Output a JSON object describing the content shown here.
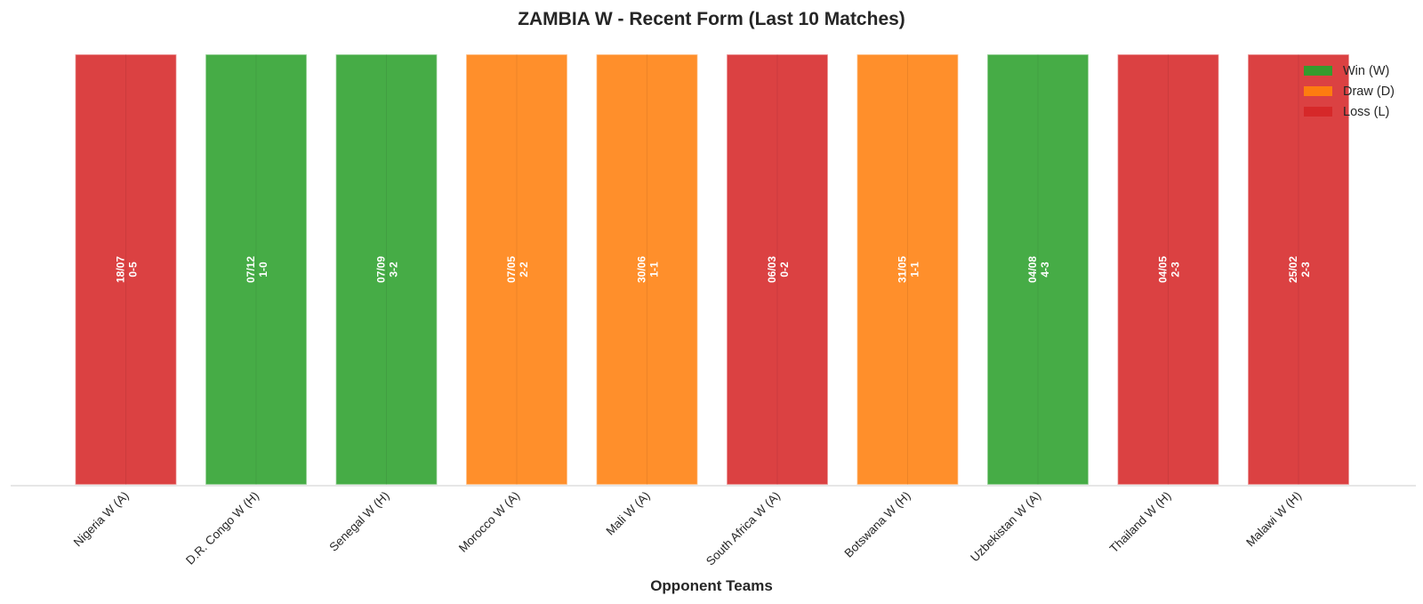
{
  "chart_data": {
    "type": "bar",
    "title": "ZAMBIA W - Recent Form (Last 10 Matches)",
    "xlabel": "Opponent Teams",
    "ylabel": "",
    "ylim": [
      0,
      1
    ],
    "grid": false,
    "legend_position": "top-right",
    "categories": [
      "Nigeria W (A)",
      "D.R. Congo W (H)",
      "Senegal W (H)",
      "Morocco W (A)",
      "Mali W (A)",
      "South Africa W (A)",
      "Botswana W (H)",
      "Uzbekistan W (A)",
      "Thailand W (H)",
      "Malawi W (H)"
    ],
    "values": [
      1,
      1,
      1,
      1,
      1,
      1,
      1,
      1,
      1,
      1
    ],
    "results": [
      "L",
      "W",
      "W",
      "D",
      "D",
      "L",
      "D",
      "W",
      "L",
      "L"
    ],
    "dates": [
      "18/07",
      "07/12",
      "07/09",
      "07/05",
      "30/06",
      "06/03",
      "31/05",
      "04/08",
      "04/05",
      "25/02"
    ],
    "scores": [
      "0-5",
      "1-0",
      "3-2",
      "2-2",
      "1-1",
      "0-2",
      "1-1",
      "4-3",
      "2-3",
      "2-3"
    ],
    "legend": [
      {
        "key": "W",
        "label": "Win (W)",
        "color": "#2ca02c"
      },
      {
        "key": "D",
        "label": "Draw (D)",
        "color": "#ff7f0e"
      },
      {
        "key": "L",
        "label": "Loss (L)",
        "color": "#d62728"
      }
    ],
    "colors": {
      "W": "#2ca02c",
      "D": "#ff7f0e",
      "L": "#d62728"
    }
  }
}
